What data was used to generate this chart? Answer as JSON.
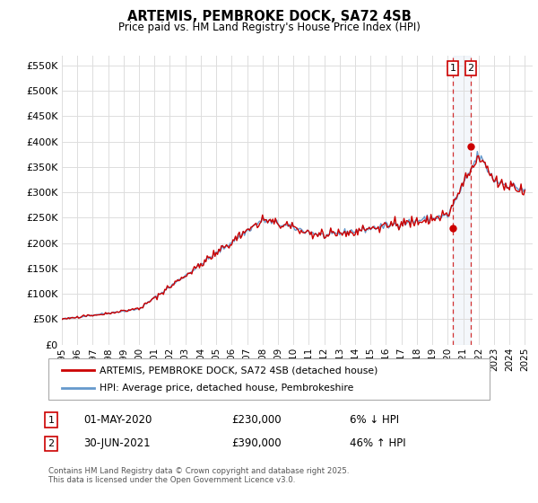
{
  "title": "ARTEMIS, PEMBROKE DOCK, SA72 4SB",
  "subtitle": "Price paid vs. HM Land Registry's House Price Index (HPI)",
  "ylabel_ticks": [
    "£0",
    "£50K",
    "£100K",
    "£150K",
    "£200K",
    "£250K",
    "£300K",
    "£350K",
    "£400K",
    "£450K",
    "£500K",
    "£550K"
  ],
  "ytick_values": [
    0,
    50000,
    100000,
    150000,
    200000,
    250000,
    300000,
    350000,
    400000,
    450000,
    500000,
    550000
  ],
  "ylim": [
    0,
    570000
  ],
  "xlim_start": 1995.0,
  "xlim_end": 2025.5,
  "x_tick_years": [
    1995,
    1996,
    1997,
    1998,
    1999,
    2000,
    2001,
    2002,
    2003,
    2004,
    2005,
    2006,
    2007,
    2008,
    2009,
    2010,
    2011,
    2012,
    2013,
    2014,
    2015,
    2016,
    2017,
    2018,
    2019,
    2020,
    2021,
    2022,
    2023,
    2024,
    2025
  ],
  "hpi_color": "#6699cc",
  "price_color": "#cc0000",
  "dashed_color": "#cc0000",
  "background_color": "#ffffff",
  "grid_color": "#dddddd",
  "marker1_date": 2020.33,
  "marker1_price": 230000,
  "marker2_date": 2021.5,
  "marker2_price": 390000,
  "legend_label1": "ARTEMIS, PEMBROKE DOCK, SA72 4SB (detached house)",
  "legend_label2": "HPI: Average price, detached house, Pembrokeshire",
  "note1_num": "1",
  "note1_date": "01-MAY-2020",
  "note1_price": "£230,000",
  "note1_pct": "6% ↓ HPI",
  "note2_num": "2",
  "note2_date": "30-JUN-2021",
  "note2_price": "£390,000",
  "note2_pct": "46% ↑ HPI",
  "footer": "Contains HM Land Registry data © Crown copyright and database right 2025.\nThis data is licensed under the Open Government Licence v3.0."
}
